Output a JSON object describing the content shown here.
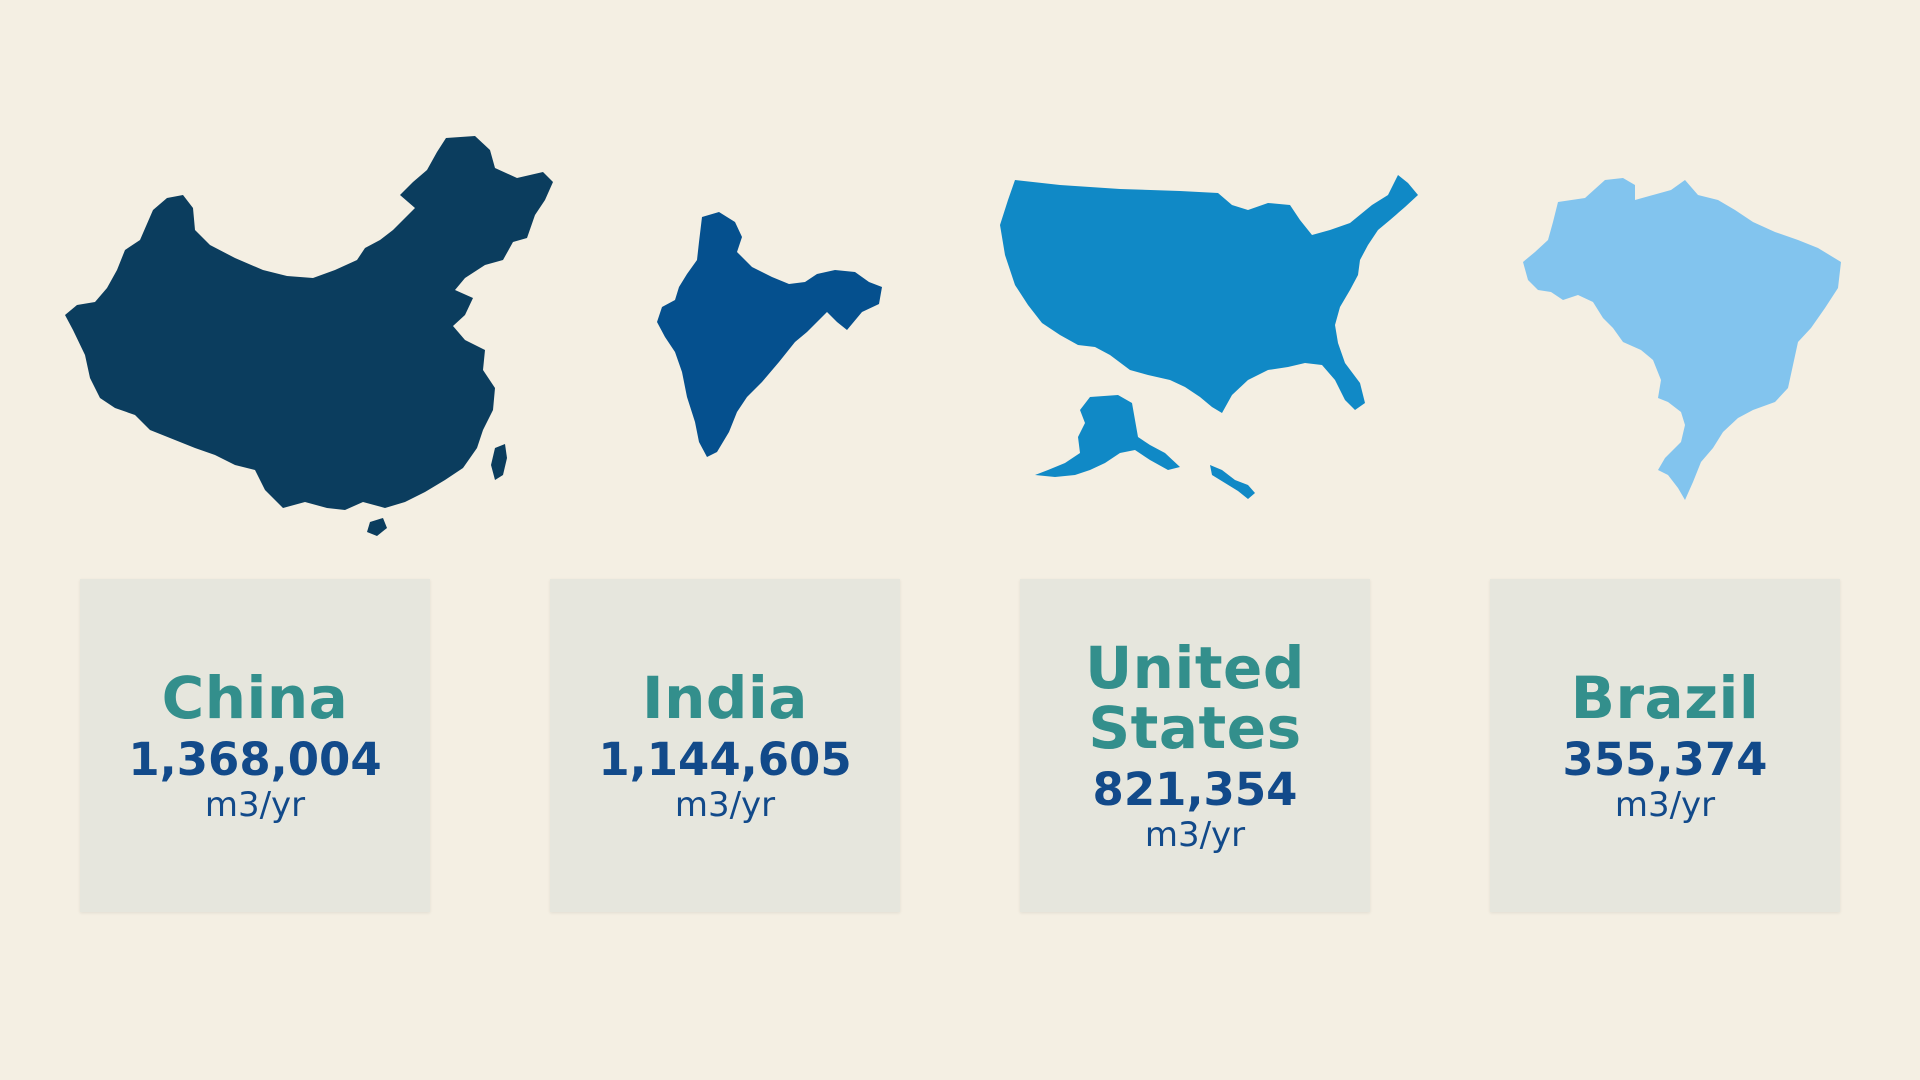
{
  "countries": [
    {
      "name": "China",
      "value": "1,368,004",
      "unit": "m3/yr",
      "color": "#0b3d5e",
      "icon": "china-map-icon"
    },
    {
      "name": "India",
      "value": "1,144,605",
      "unit": "m3/yr",
      "color": "#05508e",
      "icon": "india-map-icon"
    },
    {
      "name": "United States",
      "value": "821,354",
      "unit": "m3/yr",
      "color": "#1089c6",
      "icon": "usa-map-icon"
    },
    {
      "name": "Brazil",
      "value": "355,374",
      "unit": "m3/yr",
      "color": "#82c4ee",
      "icon": "brazil-map-icon"
    }
  ]
}
